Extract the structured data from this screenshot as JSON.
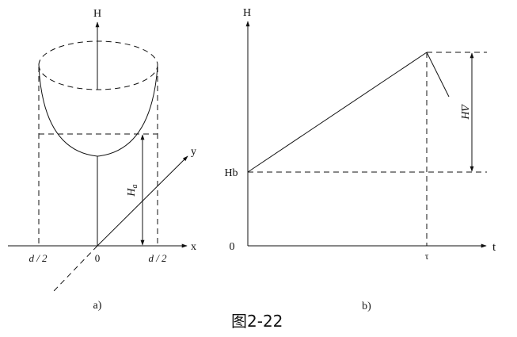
{
  "figure_a": {
    "axis_h": "H",
    "axis_x": "x",
    "axis_y": "y",
    "origin": "0",
    "left_tick": "d / 2",
    "right_tick": "d / 2",
    "height_label": "H",
    "height_label_sub": "a",
    "caption": "a)"
  },
  "figure_b": {
    "axis_h": "H",
    "axis_t": "t",
    "origin": "0",
    "base_label": "Hb",
    "time_label": "τ",
    "delta_label": "ΔH",
    "caption": "b)"
  },
  "figure_caption": "图2-22"
}
